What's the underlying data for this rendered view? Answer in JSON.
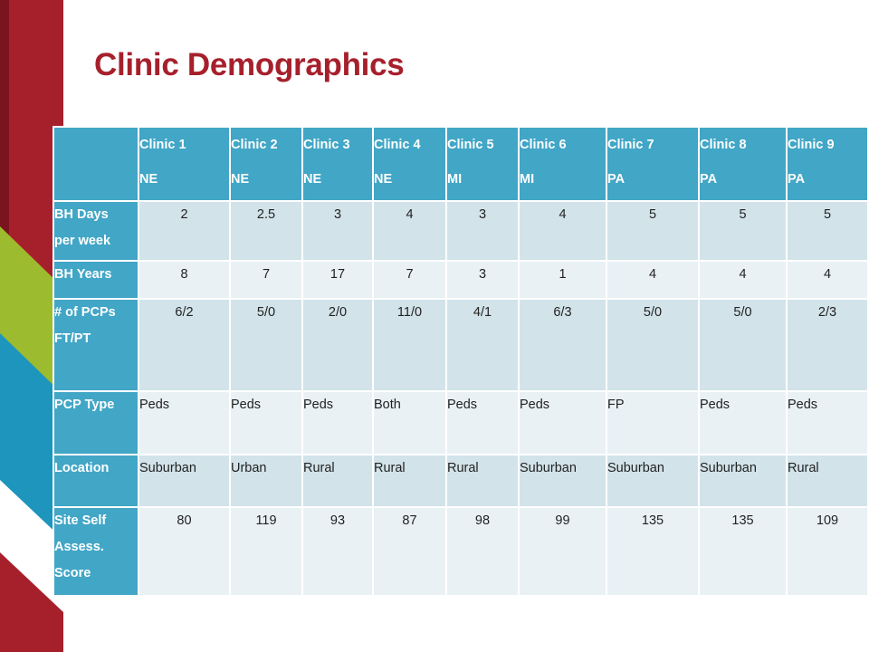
{
  "title": "Clinic Demographics",
  "colors": {
    "title": "#a6202c",
    "header": "#42a6c6",
    "row_odd": "#d2e3ea",
    "row_even": "#e9f1f5"
  },
  "table": {
    "columns": [
      {
        "name": "Clinic 1",
        "region": "NE"
      },
      {
        "name": "Clinic 2",
        "region": "NE"
      },
      {
        "name": "Clinic 3",
        "region": "NE"
      },
      {
        "name": "Clinic 4",
        "region": "NE"
      },
      {
        "name": "Clinic 5",
        "region": "MI"
      },
      {
        "name": "Clinic 6",
        "region": "MI"
      },
      {
        "name": "Clinic 7",
        "region": "PA"
      },
      {
        "name": "Clinic 8",
        "region": "PA"
      },
      {
        "name": "Clinic 9",
        "region": "PA"
      }
    ],
    "rows": [
      {
        "label": [
          "BH Days",
          "per week"
        ],
        "values": [
          "2",
          "2.5",
          "3",
          "4",
          "3",
          "4",
          "5",
          "5",
          "5"
        ]
      },
      {
        "label": [
          "BH Years"
        ],
        "values": [
          "8",
          "7",
          "17",
          "7",
          "3",
          "1",
          "4",
          "4",
          "4"
        ]
      },
      {
        "label": [
          "# of PCPs",
          "FT/PT"
        ],
        "values": [
          "6/2",
          "5/0",
          "2/0",
          "11/0",
          "4/1",
          "6/3",
          "5/0",
          "5/0",
          "2/3"
        ]
      },
      {
        "label": [
          "PCP Type"
        ],
        "values": [
          "Peds",
          "Peds",
          "Peds",
          "Both",
          "Peds",
          "Peds",
          "FP",
          "Peds",
          "Peds"
        ]
      },
      {
        "label": [
          "Location"
        ],
        "values": [
          "Suburban",
          "Urban",
          "Rural",
          "Rural",
          "Rural",
          "Suburban",
          "Suburban",
          "Suburban",
          "Rural"
        ]
      },
      {
        "label": [
          "Site Self",
          "Assess.",
          "Score"
        ],
        "values": [
          "80",
          "119",
          "93",
          "87",
          "98",
          "99",
          "135",
          "135",
          "109"
        ]
      }
    ]
  }
}
